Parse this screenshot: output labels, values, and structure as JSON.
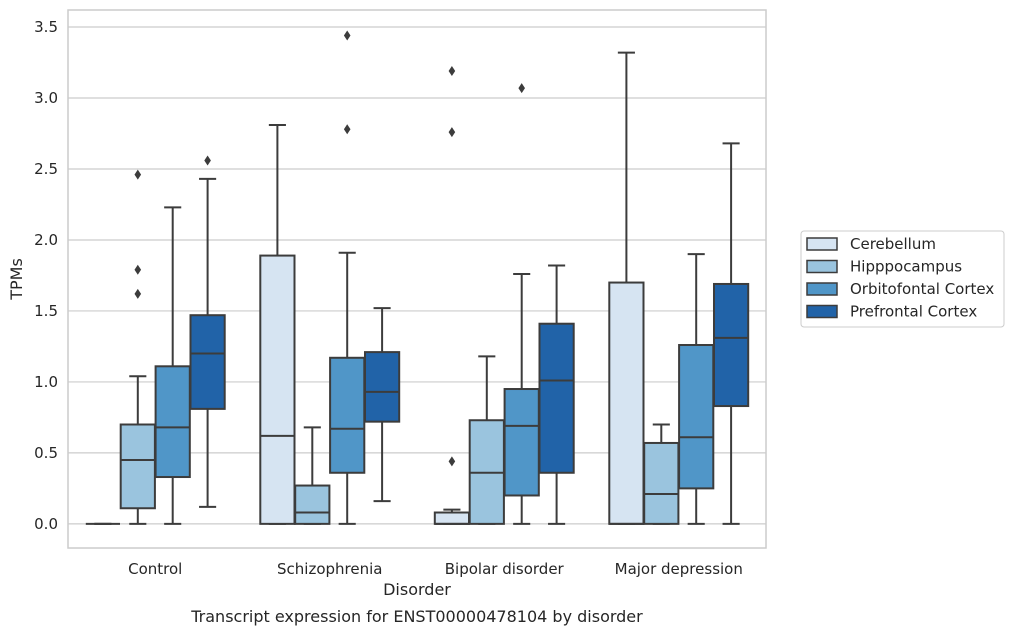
{
  "chart_data": {
    "type": "box",
    "title": "",
    "caption": "Transcript expression for ENST00000478104 by disorder",
    "xlabel": "Disorder",
    "ylabel": "TPMs",
    "ylim": [
      -0.17,
      3.62
    ],
    "yticks": [
      "0.0",
      "0.5",
      "1.0",
      "1.5",
      "2.0",
      "2.5",
      "3.0",
      "3.5"
    ],
    "grid": true,
    "legend_position": "right",
    "categories": [
      "Control",
      "Schizophrenia",
      "Bipolar disorder",
      "Major depression"
    ],
    "series": [
      {
        "name": "Cerebellum",
        "color": "#d6e4f2",
        "boxes": [
          {
            "whislo": 0.0,
            "q1": 0.0,
            "med": 0.0,
            "q3": 0.0,
            "whishi": 0.0,
            "fliers": []
          },
          {
            "whislo": 0.0,
            "q1": 0.0,
            "med": 0.62,
            "q3": 1.89,
            "whishi": 2.81,
            "fliers": []
          },
          {
            "whislo": 0.0,
            "q1": 0.0,
            "med": 0.0,
            "q3": 0.08,
            "whishi": 0.1,
            "fliers": [
              0.44,
              2.76,
              3.19
            ]
          },
          {
            "whislo": 0.0,
            "q1": 0.0,
            "med": 0.0,
            "q3": 1.7,
            "whishi": 3.32,
            "fliers": []
          }
        ]
      },
      {
        "name": "Hipppocampus",
        "color": "#9ac4de",
        "boxes": [
          {
            "whislo": 0.0,
            "q1": 0.11,
            "med": 0.45,
            "q3": 0.7,
            "whishi": 1.04,
            "fliers": [
              1.62,
              1.79,
              2.46
            ]
          },
          {
            "whislo": 0.0,
            "q1": 0.0,
            "med": 0.08,
            "q3": 0.27,
            "whishi": 0.68,
            "fliers": []
          },
          {
            "whislo": 0.0,
            "q1": 0.0,
            "med": 0.36,
            "q3": 0.73,
            "whishi": 1.18,
            "fliers": []
          },
          {
            "whislo": 0.0,
            "q1": 0.0,
            "med": 0.21,
            "q3": 0.57,
            "whishi": 0.7,
            "fliers": []
          }
        ]
      },
      {
        "name": "Orbitofontal Cortex",
        "color": "#5096c8",
        "boxes": [
          {
            "whislo": 0.0,
            "q1": 0.33,
            "med": 0.68,
            "q3": 1.11,
            "whishi": 2.23,
            "fliers": []
          },
          {
            "whislo": 0.0,
            "q1": 0.36,
            "med": 0.67,
            "q3": 1.17,
            "whishi": 1.91,
            "fliers": [
              2.78,
              3.44
            ]
          },
          {
            "whislo": 0.0,
            "q1": 0.2,
            "med": 0.69,
            "q3": 0.95,
            "whishi": 1.76,
            "fliers": [
              3.07
            ]
          },
          {
            "whislo": 0.0,
            "q1": 0.25,
            "med": 0.61,
            "q3": 1.26,
            "whishi": 1.9,
            "fliers": []
          }
        ]
      },
      {
        "name": "Prefrontal Cortex",
        "color": "#2163a8",
        "boxes": [
          {
            "whislo": 0.12,
            "q1": 0.81,
            "med": 1.2,
            "q3": 1.47,
            "whishi": 2.43,
            "fliers": [
              2.56
            ]
          },
          {
            "whislo": 0.16,
            "q1": 0.72,
            "med": 0.93,
            "q3": 1.21,
            "whishi": 1.52,
            "fliers": []
          },
          {
            "whislo": 0.0,
            "q1": 0.36,
            "med": 1.01,
            "q3": 1.41,
            "whishi": 1.82,
            "fliers": []
          },
          {
            "whislo": 0.0,
            "q1": 0.83,
            "med": 1.31,
            "q3": 1.69,
            "whishi": 2.68,
            "fliers": []
          }
        ]
      }
    ]
  }
}
